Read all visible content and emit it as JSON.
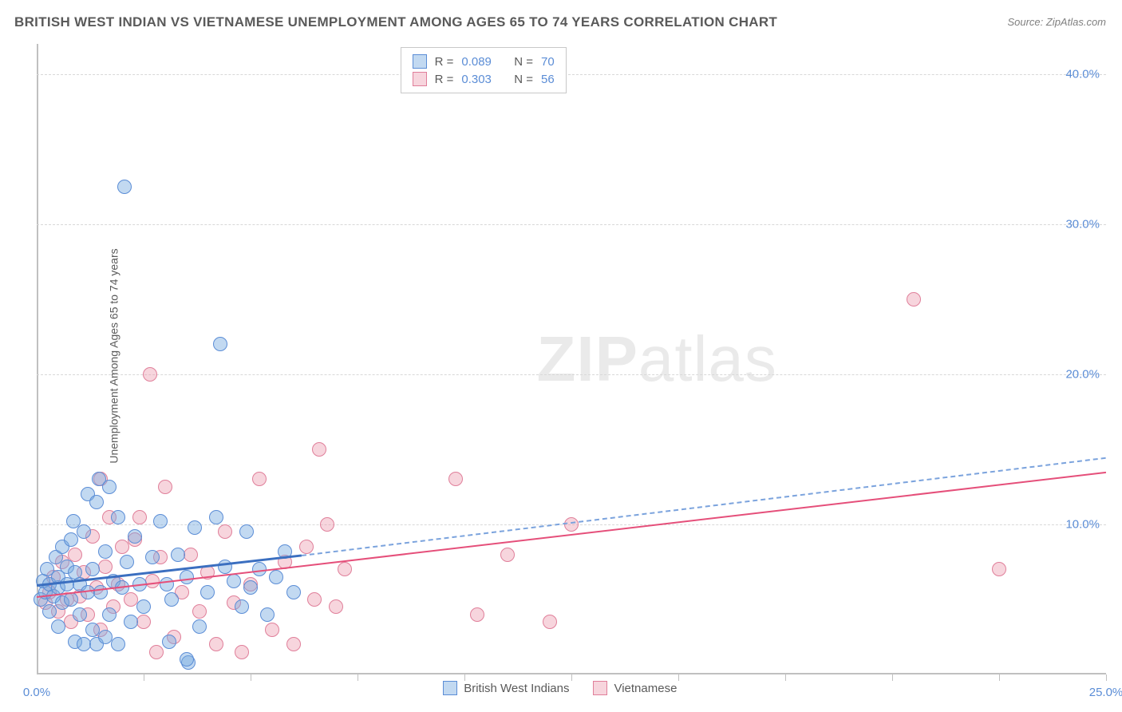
{
  "title": "BRITISH WEST INDIAN VS VIETNAMESE UNEMPLOYMENT AMONG AGES 65 TO 74 YEARS CORRELATION CHART",
  "source": "Source: ZipAtlas.com",
  "ylabel": "Unemployment Among Ages 65 to 74 years",
  "watermark_a": "ZIP",
  "watermark_b": "atlas",
  "colors": {
    "series1_fill": "rgba(120,170,225,0.45)",
    "series1_stroke": "#5b8dd6",
    "series2_fill": "rgba(235,150,170,0.40)",
    "series2_stroke": "#e07f9a",
    "trend1_solid": "#3b6fc0",
    "trend1_dash": "#7ba3dd",
    "trend2": "#e54f7a",
    "grid": "#d8d8d8",
    "axis": "#c0c0c0",
    "tick_text": "#5b8dd6",
    "title_text": "#5a5a5a"
  },
  "chart": {
    "type": "scatter",
    "x_min": 0,
    "x_max": 25,
    "y_min": 0,
    "y_max": 42,
    "y_ticks": [
      10,
      20,
      30,
      40
    ],
    "y_tick_labels": [
      "10.0%",
      "20.0%",
      "30.0%",
      "40.0%"
    ],
    "x_ticks": [
      0,
      5,
      10,
      25
    ],
    "x_tick_labels": [
      "0.0%",
      "",
      "",
      "25.0%"
    ],
    "x_minor_marks": [
      2.5,
      5,
      7.5,
      10,
      12.5,
      15,
      17.5,
      20,
      22.5,
      25
    ],
    "point_radius": 9,
    "point_stroke_w": 1.5
  },
  "legend_top": {
    "rows": [
      {
        "swatch": 1,
        "r_label": "R =",
        "r_val": "0.089",
        "n_label": "N =",
        "n_val": "70"
      },
      {
        "swatch": 2,
        "r_label": "R =",
        "r_val": "0.303",
        "n_label": "N =",
        "n_val": "56"
      }
    ]
  },
  "legend_bottom": {
    "items": [
      {
        "swatch": 1,
        "label": "British West Indians"
      },
      {
        "swatch": 2,
        "label": "Vietnamese"
      }
    ]
  },
  "trend_lines": {
    "series1": {
      "x0": 0,
      "y0": 6.0,
      "x_solid_end": 6.2,
      "y_solid_end": 8.0,
      "x1": 25,
      "y1": 14.5
    },
    "series2": {
      "x0": 0,
      "y0": 5.2,
      "x1": 25,
      "y1": 13.5,
      "width": 2.5
    }
  },
  "series1_points": [
    [
      0.1,
      5.0
    ],
    [
      0.2,
      5.5
    ],
    [
      0.15,
      6.2
    ],
    [
      0.3,
      6.0
    ],
    [
      0.25,
      7.0
    ],
    [
      0.4,
      5.2
    ],
    [
      0.3,
      4.2
    ],
    [
      0.5,
      5.8
    ],
    [
      0.45,
      7.8
    ],
    [
      0.5,
      6.5
    ],
    [
      0.6,
      4.8
    ],
    [
      0.6,
      8.5
    ],
    [
      0.7,
      6.0
    ],
    [
      0.7,
      7.2
    ],
    [
      0.8,
      5.0
    ],
    [
      0.8,
      9.0
    ],
    [
      0.85,
      10.2
    ],
    [
      0.9,
      2.2
    ],
    [
      0.9,
      6.8
    ],
    [
      1.0,
      4.0
    ],
    [
      1.0,
      6.0
    ],
    [
      1.1,
      2.0
    ],
    [
      1.1,
      9.5
    ],
    [
      1.2,
      5.5
    ],
    [
      1.2,
      12.0
    ],
    [
      1.3,
      3.0
    ],
    [
      1.3,
      7.0
    ],
    [
      1.4,
      11.5
    ],
    [
      1.4,
      2.0
    ],
    [
      1.45,
      13.0
    ],
    [
      1.5,
      5.5
    ],
    [
      1.6,
      2.5
    ],
    [
      1.6,
      8.2
    ],
    [
      1.7,
      12.5
    ],
    [
      1.7,
      4.0
    ],
    [
      1.8,
      6.2
    ],
    [
      1.9,
      10.5
    ],
    [
      1.9,
      2.0
    ],
    [
      2.0,
      5.8
    ],
    [
      2.05,
      32.5
    ],
    [
      2.1,
      7.5
    ],
    [
      2.2,
      3.5
    ],
    [
      2.3,
      9.2
    ],
    [
      2.4,
      6.0
    ],
    [
      2.5,
      4.5
    ],
    [
      2.7,
      7.8
    ],
    [
      2.9,
      10.2
    ],
    [
      3.05,
      6.0
    ],
    [
      3.1,
      2.2
    ],
    [
      3.15,
      5.0
    ],
    [
      3.3,
      8.0
    ],
    [
      3.5,
      6.5
    ],
    [
      3.55,
      0.8
    ],
    [
      3.7,
      9.8
    ],
    [
      3.8,
      3.2
    ],
    [
      4.0,
      5.5
    ],
    [
      4.2,
      10.5
    ],
    [
      4.4,
      7.2
    ],
    [
      4.6,
      6.2
    ],
    [
      4.8,
      4.5
    ],
    [
      4.9,
      9.5
    ],
    [
      5.0,
      5.8
    ],
    [
      5.2,
      7.0
    ],
    [
      4.3,
      22.0
    ],
    [
      5.4,
      4.0
    ],
    [
      5.6,
      6.5
    ],
    [
      5.8,
      8.2
    ],
    [
      6.0,
      5.5
    ],
    [
      3.5,
      1.0
    ],
    [
      0.5,
      3.2
    ]
  ],
  "series2_points": [
    [
      0.2,
      4.8
    ],
    [
      0.3,
      5.5
    ],
    [
      0.4,
      6.5
    ],
    [
      0.5,
      4.2
    ],
    [
      0.6,
      7.5
    ],
    [
      0.7,
      5.0
    ],
    [
      0.8,
      3.5
    ],
    [
      0.9,
      8.0
    ],
    [
      1.0,
      5.2
    ],
    [
      1.1,
      6.8
    ],
    [
      1.2,
      4.0
    ],
    [
      1.3,
      9.2
    ],
    [
      1.4,
      5.8
    ],
    [
      1.5,
      3.0
    ],
    [
      1.6,
      7.2
    ],
    [
      1.7,
      10.5
    ],
    [
      1.8,
      4.5
    ],
    [
      1.9,
      6.0
    ],
    [
      2.0,
      8.5
    ],
    [
      2.2,
      5.0
    ],
    [
      2.3,
      9.0
    ],
    [
      2.4,
      10.5
    ],
    [
      2.5,
      3.5
    ],
    [
      2.65,
      20.0
    ],
    [
      2.7,
      6.2
    ],
    [
      2.8,
      1.5
    ],
    [
      2.9,
      7.8
    ],
    [
      3.0,
      12.5
    ],
    [
      3.2,
      2.5
    ],
    [
      3.4,
      5.5
    ],
    [
      3.6,
      8.0
    ],
    [
      3.8,
      4.2
    ],
    [
      4.0,
      6.8
    ],
    [
      4.2,
      2.0
    ],
    [
      4.4,
      9.5
    ],
    [
      4.6,
      4.8
    ],
    [
      4.8,
      1.5
    ],
    [
      5.0,
      6.0
    ],
    [
      5.2,
      13.0
    ],
    [
      5.5,
      3.0
    ],
    [
      5.8,
      7.5
    ],
    [
      6.0,
      2.0
    ],
    [
      6.3,
      8.5
    ],
    [
      6.5,
      5.0
    ],
    [
      6.6,
      15.0
    ],
    [
      6.8,
      10.0
    ],
    [
      7.0,
      4.5
    ],
    [
      7.2,
      7.0
    ],
    [
      9.8,
      13.0
    ],
    [
      10.3,
      4.0
    ],
    [
      11.0,
      8.0
    ],
    [
      12.5,
      10.0
    ],
    [
      12.0,
      3.5
    ],
    [
      20.5,
      25.0
    ],
    [
      22.5,
      7.0
    ],
    [
      1.5,
      13.0
    ]
  ]
}
